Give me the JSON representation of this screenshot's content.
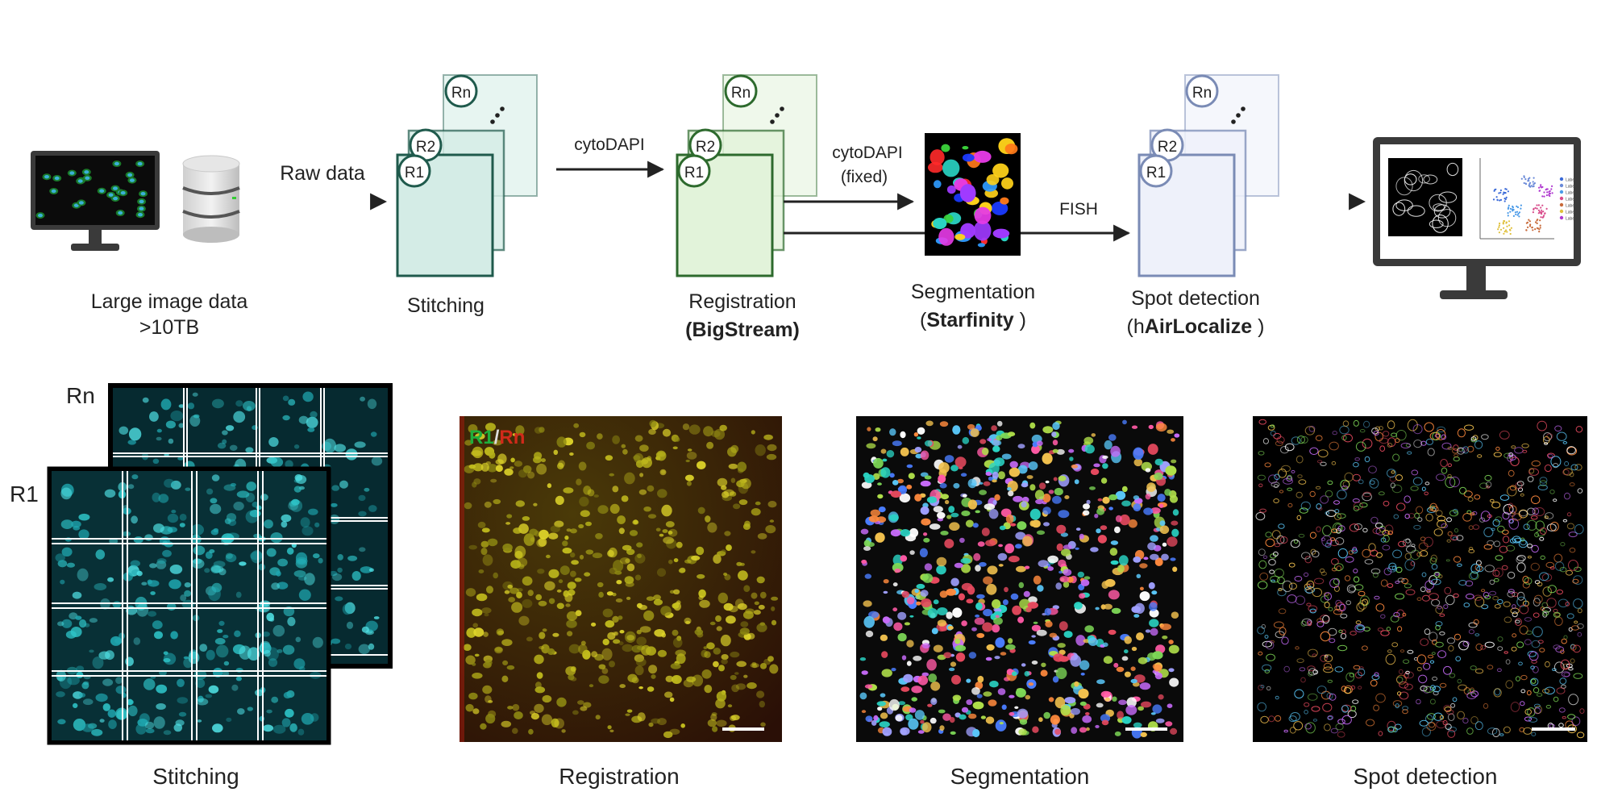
{
  "pipeline": {
    "input": {
      "line1": "Large image data",
      "line2": ">10TB"
    },
    "arrow_raw": "Raw data",
    "arrow_cyto1": "cytoDAPI",
    "arrow_cyto2_line1": "cytoDAPI",
    "arrow_cyto2_line2": "(fixed)",
    "arrow_fish": "FISH",
    "stitching": {
      "label": "Stitching",
      "frames": [
        "R1",
        "R2",
        "Rn"
      ]
    },
    "registration": {
      "label": "Registration",
      "tool": "(BigStream)",
      "frames": [
        "R1",
        "R2",
        "Rn"
      ]
    },
    "segmentation": {
      "label": "Segmentation",
      "tool_open": "(",
      "tool": "Starfinity",
      "tool_close": " )"
    },
    "spot": {
      "label": "Spot detection",
      "tool_open": "(h",
      "tool": "AirLocalize",
      "tool_close": " )",
      "frames": [
        "R1",
        "R2",
        "Rn"
      ]
    },
    "monitor_legend": [
      "Label",
      "Label",
      "Label",
      "Label",
      "Label",
      "Label",
      "Label"
    ]
  },
  "panels": {
    "stitching": {
      "caption": "Stitching",
      "round_back": "Rn",
      "round_front": "R1"
    },
    "registration": {
      "caption": "Registration",
      "overlay_a": "R1",
      "overlay_sep": "/",
      "overlay_b": "Rn"
    },
    "segmentation": {
      "caption": "Segmentation"
    },
    "spot": {
      "caption": "Spot detection"
    }
  },
  "colors": {
    "stitch_fill": "#d4ece6",
    "stitch_stroke": "#1f5a4c",
    "reg_fill": "#e2f3da",
    "reg_stroke": "#2d6a2d",
    "spot_fill": "#eef1fa",
    "spot_stroke": "#7a8bb5",
    "cyan": "#2ec4c8",
    "yellow": "#c8c21e",
    "red_overlay": "#d02a1a",
    "green_overlay": "#1fae3b"
  }
}
